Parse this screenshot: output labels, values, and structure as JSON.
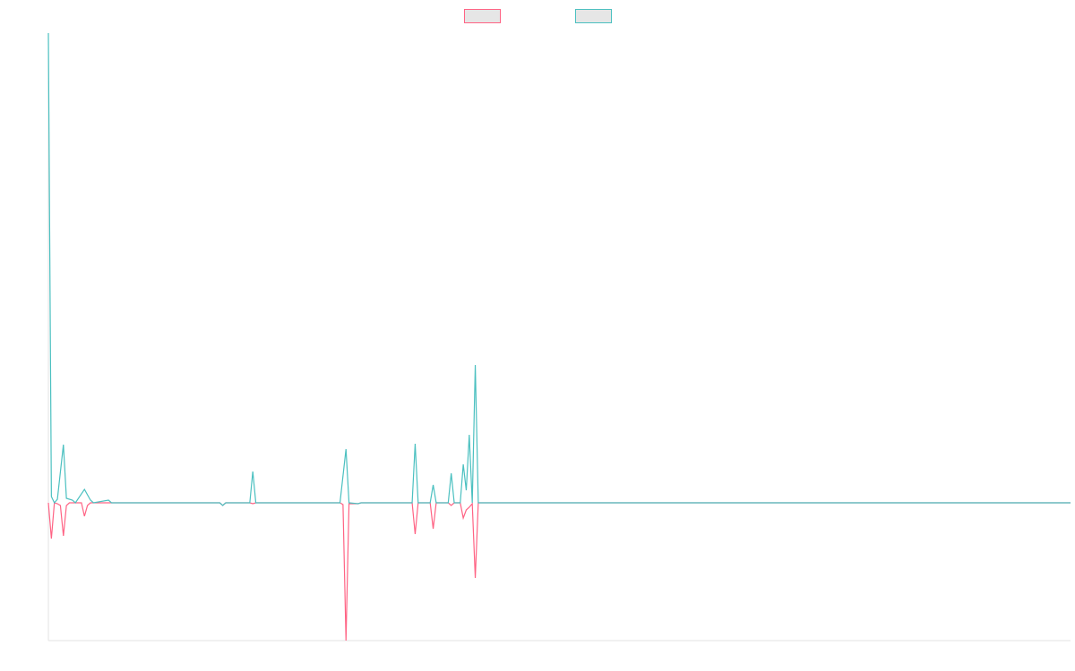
{
  "chart_data": {
    "type": "line",
    "xlim": [
      0,
      340
    ],
    "ylim": [
      -154,
      525
    ],
    "series": [
      {
        "color": "#ff6384",
        "x": [
          0,
          1,
          2,
          3,
          4,
          5,
          6,
          7,
          11,
          12,
          13,
          14,
          57,
          58,
          59,
          67,
          68,
          69,
          97,
          98,
          99,
          100,
          103,
          104,
          121,
          122,
          123,
          127,
          128,
          129,
          133,
          134,
          135,
          137,
          138,
          139,
          140,
          141,
          142,
          143,
          340
        ],
        "values": [
          0,
          -40,
          0,
          -1,
          -3,
          -37,
          -3,
          0,
          0,
          -15,
          -3,
          0,
          0,
          -3,
          0,
          0,
          -1,
          0,
          0,
          -2,
          -154,
          -1,
          -1,
          0,
          0,
          -35,
          0,
          0,
          -29,
          0,
          0,
          -3,
          0,
          0,
          -17,
          -8,
          -5,
          -1,
          -84,
          0,
          0
        ]
      },
      {
        "color": "#4bc0c0",
        "x": [
          0,
          1,
          2,
          3,
          5,
          6,
          8,
          9,
          12,
          14,
          15,
          20,
          21,
          57,
          58,
          59,
          67,
          68,
          69,
          97,
          99,
          100,
          103,
          104,
          121,
          122,
          123,
          127,
          128,
          129,
          133,
          134,
          135,
          137,
          138,
          139,
          140,
          141,
          142,
          143,
          340
        ],
        "values": [
          525,
          7,
          0,
          4,
          65,
          5,
          3,
          0,
          15,
          3,
          0,
          3,
          0,
          0,
          -3,
          0,
          0,
          35,
          0,
          0,
          60,
          0,
          -1,
          0,
          0,
          66,
          0,
          0,
          20,
          0,
          0,
          33,
          0,
          0,
          43,
          14,
          76,
          0,
          154,
          0,
          0
        ]
      }
    ]
  }
}
